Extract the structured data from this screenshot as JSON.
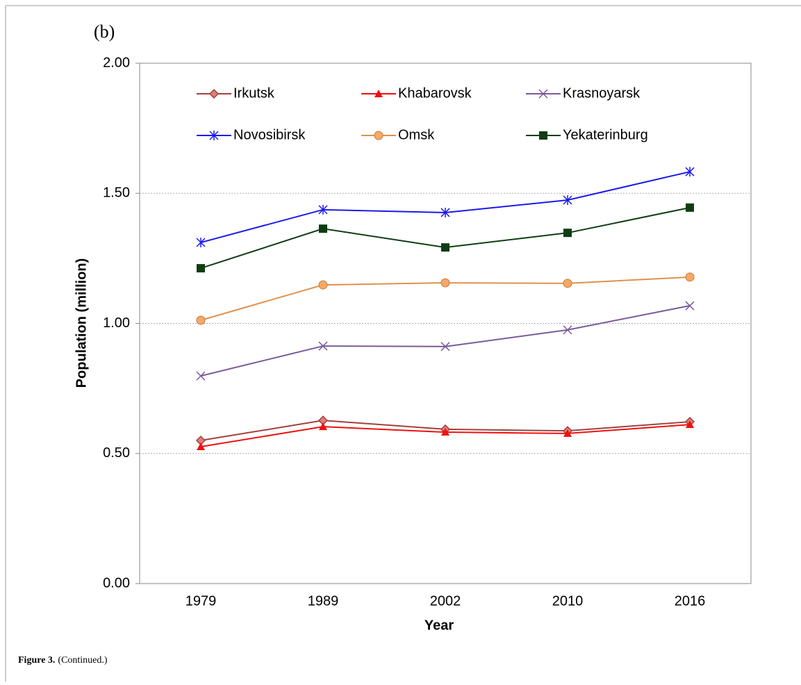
{
  "chart_data": {
    "type": "line",
    "panel_label": "(b)",
    "y_label": "Population (million)",
    "x_label": "Year",
    "categories": [
      "1979",
      "1989",
      "2002",
      "2010",
      "2016"
    ],
    "ylim": [
      0,
      2
    ],
    "yticks": [
      {
        "value": 0,
        "label": "0.00"
      },
      {
        "value": 0.5,
        "label": "0.50"
      },
      {
        "value": 1,
        "label": "1.00"
      },
      {
        "value": 1.5,
        "label": "1.50"
      },
      {
        "value": 2,
        "label": "2.00"
      }
    ],
    "grid": true,
    "legend": "top",
    "series": [
      {
        "name": "Irkutsk",
        "color": "#a0413c",
        "marker": "diamond",
        "values": [
          0.55,
          0.627,
          0.593,
          0.587,
          0.622
        ]
      },
      {
        "name": "Khabarovsk",
        "color": "#ee1111",
        "marker": "triangle",
        "values": [
          0.526,
          0.603,
          0.582,
          0.577,
          0.611
        ]
      },
      {
        "name": "Krasnoyarsk",
        "color": "#7a5a9a",
        "marker": "x",
        "values": [
          0.798,
          0.913,
          0.911,
          0.975,
          1.068
        ]
      },
      {
        "name": "Novosibirsk",
        "color": "#1a1aee",
        "marker": "asterisk",
        "values": [
          1.311,
          1.437,
          1.426,
          1.474,
          1.583
        ]
      },
      {
        "name": "Omsk",
        "color": "#e0904c",
        "marker": "circle",
        "values": [
          1.012,
          1.148,
          1.156,
          1.154,
          1.178
        ]
      },
      {
        "name": "Yekaterinburg",
        "color": "#0f3d12",
        "marker": "square",
        "values": [
          1.212,
          1.364,
          1.292,
          1.348,
          1.445
        ]
      }
    ]
  },
  "caption": {
    "label": "Figure 3.",
    "text": "(Continued.)"
  }
}
